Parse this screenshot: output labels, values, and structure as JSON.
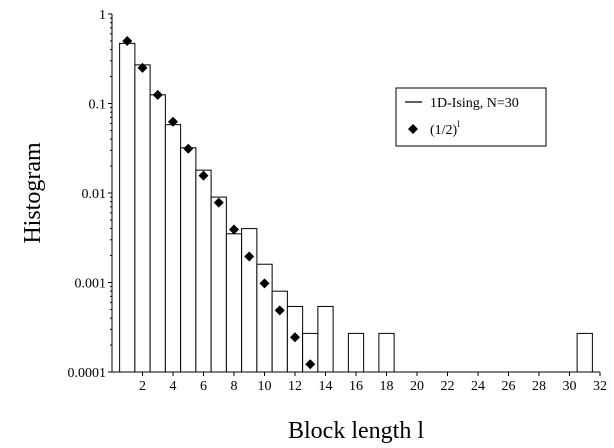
{
  "chart_data": {
    "type": "bar",
    "title": "",
    "xlabel": "Block length l",
    "ylabel": "Histogram",
    "yscale": "log",
    "ylim": [
      0.0001,
      1
    ],
    "xlim": [
      0,
      32
    ],
    "grid": false,
    "legend_position": "top-right",
    "x_ticks": [
      "2",
      "4",
      "6",
      "8",
      "10",
      "12",
      "14",
      "16",
      "18",
      "20",
      "22",
      "24",
      "26",
      "28",
      "30",
      "32"
    ],
    "y_ticks": [
      {
        "value": 0.0001,
        "label": "0.0001"
      },
      {
        "value": 0.001,
        "label": "0.001"
      },
      {
        "value": 0.01,
        "label": "0.01"
      },
      {
        "value": 0.1,
        "label": "0.1"
      },
      {
        "value": 1,
        "label": "1"
      }
    ],
    "series": [
      {
        "name": "1D-Ising, N=30",
        "kind": "histogram",
        "color": "#000000",
        "x": [
          1,
          2,
          3,
          4,
          5,
          6,
          7,
          8,
          9,
          10,
          11,
          12,
          13,
          14,
          16,
          18,
          31
        ],
        "values": [
          0.47,
          0.27,
          0.125,
          0.058,
          0.032,
          0.018,
          0.009,
          0.0035,
          0.004,
          0.0016,
          0.0008,
          0.00054,
          0.00027,
          0.00054,
          0.00027,
          0.00027,
          0.00027
        ]
      },
      {
        "name": "(1/2)",
        "name_superscript": "l",
        "kind": "points",
        "marker": "diamond",
        "color": "#000000",
        "x": [
          1,
          2,
          3,
          4,
          5,
          6,
          7,
          8,
          9,
          10,
          11,
          12,
          13
        ],
        "values": [
          0.5,
          0.25,
          0.125,
          0.0625,
          0.03125,
          0.015625,
          0.0078125,
          0.00390625,
          0.001953125,
          0.0009765625,
          0.00048828125,
          0.000244140625,
          0.0001220703125
        ]
      }
    ]
  }
}
